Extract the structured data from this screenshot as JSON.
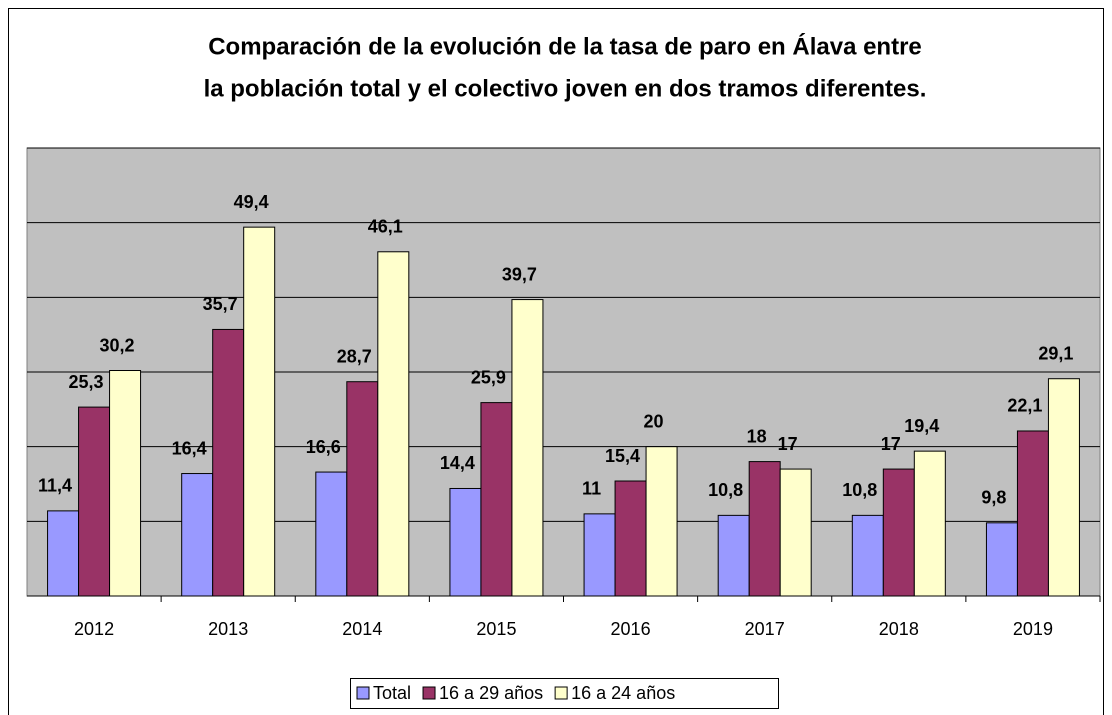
{
  "chart_data": {
    "type": "bar",
    "title": [
      "Comparación de la evolución de la tasa de paro en Álava entre",
      "la población total y el colectivo joven en dos tramos diferentes."
    ],
    "categories": [
      "2012",
      "2013",
      "2014",
      "2015",
      "2016",
      "2017",
      "2018",
      "2019"
    ],
    "series": [
      {
        "name": "Total",
        "color": "#9999ff",
        "values": [
          11.4,
          16.4,
          16.6,
          14.4,
          11,
          10.8,
          10.8,
          9.8
        ],
        "value_labels": [
          "11,4",
          "16,4",
          "16,6",
          "14,4",
          "11",
          "10,8",
          "10,8",
          "9,8"
        ]
      },
      {
        "name": "16 a 29 años",
        "color": "#993366",
        "values": [
          25.3,
          35.7,
          28.7,
          25.9,
          15.4,
          18,
          17,
          22.1
        ],
        "value_labels": [
          "25,3",
          "35,7",
          "28,7",
          "25,9",
          "15,4",
          "18",
          "17",
          "22,1"
        ]
      },
      {
        "name": "16 a 24 años",
        "color": "#ffffcc",
        "values": [
          30.2,
          49.4,
          46.1,
          39.7,
          20,
          17,
          19.4,
          29.1
        ],
        "value_labels": [
          "30,2",
          "49,4",
          "46,1",
          "39,7",
          "20",
          "17",
          "19,4",
          "29,1"
        ]
      }
    ],
    "ylim": [
      0,
      60
    ],
    "yticks": [
      0,
      10,
      20,
      30,
      40,
      50,
      60
    ],
    "grid": true,
    "legend": "bottom"
  }
}
